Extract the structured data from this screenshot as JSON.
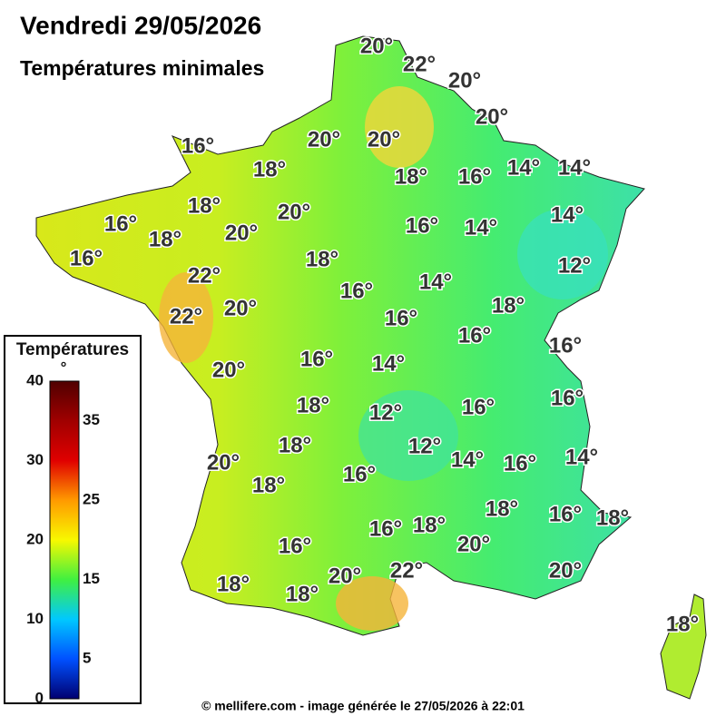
{
  "header": {
    "title": "Vendredi 29/05/2026",
    "subtitle": "Températures minimales"
  },
  "map": {
    "labels": [
      "20°",
      "22°",
      "20°",
      "20°",
      "16°",
      "20°",
      "20°",
      "18°",
      "18°",
      "16°",
      "14°",
      "14°",
      "18°",
      "16°",
      "18°",
      "20°",
      "20°",
      "16°",
      "14°",
      "14°",
      "16°",
      "18°",
      "12°",
      "22°",
      "16°",
      "14°",
      "18°",
      "22°",
      "20°",
      "16°",
      "16°",
      "16°",
      "16°",
      "14°",
      "20°",
      "18°",
      "12°",
      "16°",
      "16°",
      "18°",
      "12°",
      "14°",
      "20°",
      "16°",
      "14°",
      "18°",
      "16°",
      "18°",
      "16°",
      "18°",
      "16°",
      "18°",
      "16°",
      "20°",
      "20°",
      "22°",
      "20°",
      "18°",
      "18°",
      "18°"
    ]
  },
  "legend": {
    "title": "Températures",
    "unit": "°",
    "left_ticks": [
      40,
      30,
      20,
      10,
      0
    ],
    "right_ticks": [
      35,
      25,
      15,
      5
    ]
  },
  "footer": {
    "text": "© mellifere.com - image générée le 27/05/2026 à 22:01"
  }
}
